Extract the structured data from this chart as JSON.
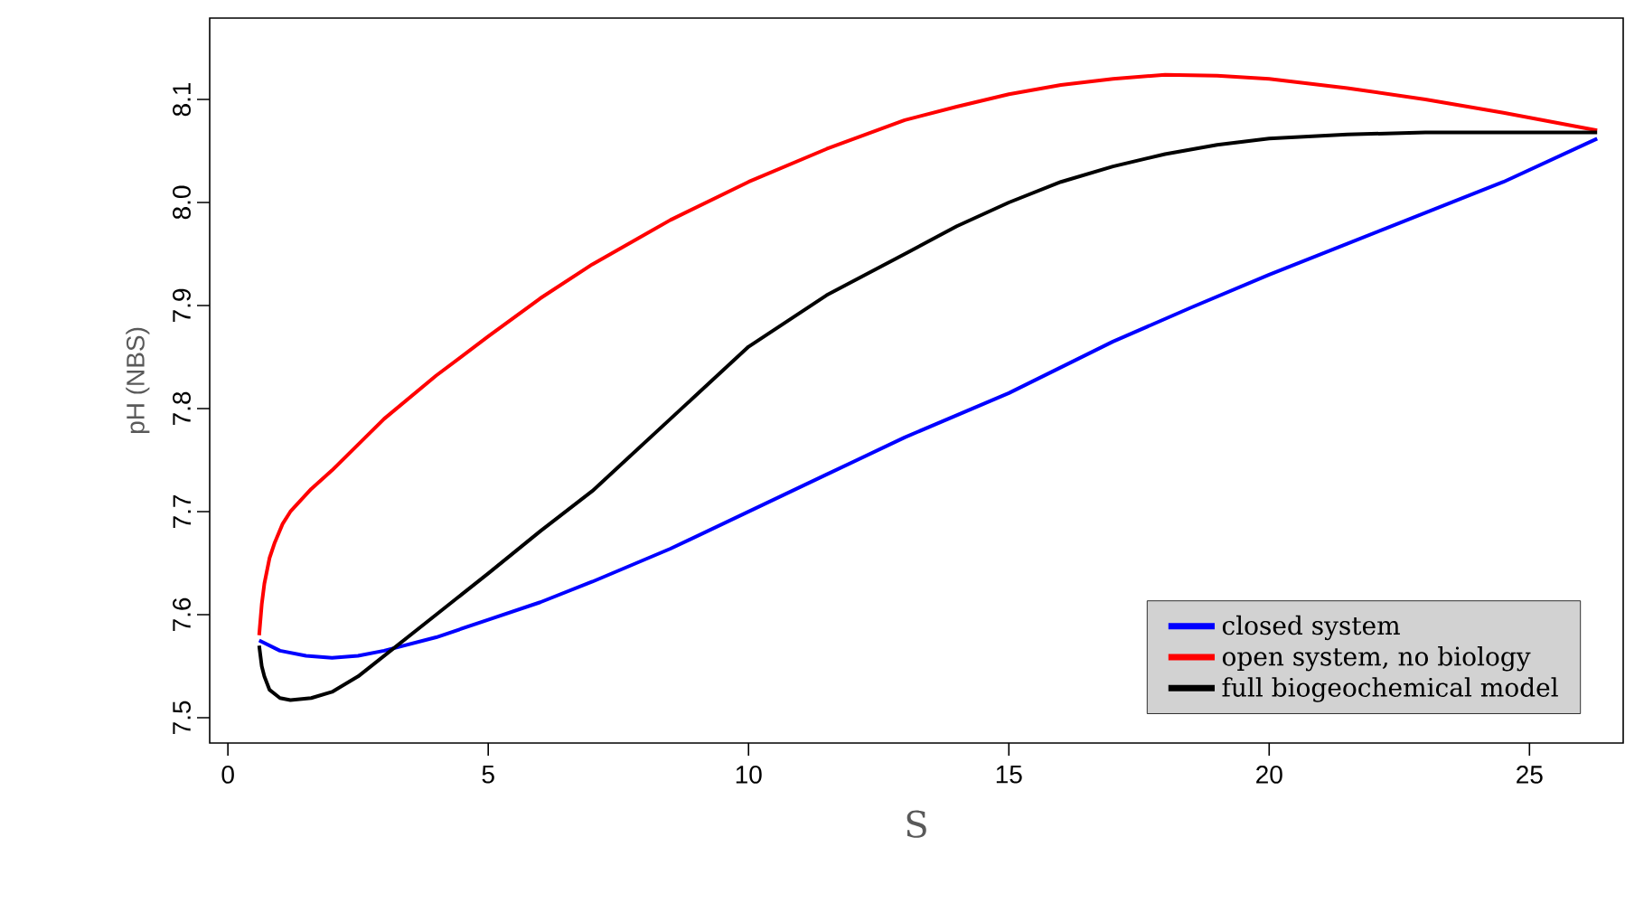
{
  "chart_data": {
    "type": "line",
    "xlabel": "S",
    "ylabel": "pH (NBS)",
    "xlim": [
      -0.35,
      26.8
    ],
    "ylim": [
      7.4754,
      8.179
    ],
    "xticks": [
      0,
      5,
      10,
      15,
      20,
      25
    ],
    "yticks": [
      7.5,
      7.6,
      7.7,
      7.8,
      7.9,
      {
        "value": 8.0,
        "label": "8.0"
      },
      8.1
    ],
    "legend": "bottom right",
    "grid": false,
    "marker": "none",
    "line_style": "solid",
    "series": [
      {
        "name": "closed system",
        "color": "#0000ff",
        "x": [
          0.6,
          1,
          1.5,
          2,
          2.5,
          3,
          4,
          5,
          6,
          7,
          8.5,
          10,
          11.5,
          13,
          15,
          17,
          18.5,
          20,
          21.5,
          23,
          24.5,
          26.3
        ],
        "values": [
          7.575,
          7.565,
          7.56,
          7.558,
          7.56,
          7.565,
          7.578,
          7.595,
          7.612,
          7.632,
          7.664,
          7.7,
          7.736,
          7.772,
          7.815,
          7.865,
          7.898,
          7.93,
          7.96,
          7.99,
          8.02,
          8.062
        ]
      },
      {
        "name": "open system, no biology",
        "color": "#ff0000",
        "x": [
          0.6,
          0.65,
          0.7,
          0.8,
          0.9,
          1.05,
          1.2,
          1.6,
          2,
          2.5,
          3,
          4,
          5,
          6,
          7,
          8.5,
          10,
          11.5,
          13,
          14,
          15,
          16,
          17,
          18,
          19,
          20,
          21.5,
          23,
          24.5,
          26.3
        ],
        "values": [
          7.58,
          7.61,
          7.63,
          7.655,
          7.67,
          7.688,
          7.7,
          7.722,
          7.74,
          7.765,
          7.79,
          7.832,
          7.87,
          7.907,
          7.94,
          7.983,
          8.02,
          8.052,
          8.08,
          8.093,
          8.105,
          8.114,
          8.12,
          8.124,
          8.123,
          8.12,
          8.111,
          8.1,
          8.087,
          8.07
        ]
      },
      {
        "name": "full biogeochemical model",
        "color": "#000000",
        "x": [
          0.6,
          0.65,
          0.7,
          0.8,
          1,
          1.2,
          1.6,
          2,
          2.5,
          3,
          4,
          5,
          6,
          7,
          8.5,
          10,
          11.5,
          13,
          14,
          15,
          16,
          17,
          18,
          19,
          20,
          21.5,
          23,
          24.5,
          26.3
        ],
        "values": [
          7.57,
          7.55,
          7.54,
          7.527,
          7.519,
          7.517,
          7.519,
          7.525,
          7.54,
          7.56,
          7.6,
          7.64,
          7.681,
          7.72,
          7.79,
          7.86,
          7.91,
          7.95,
          7.977,
          8.0,
          8.02,
          8.035,
          8.047,
          8.056,
          8.062,
          8.066,
          8.068,
          8.068,
          8.068
        ]
      }
    ]
  }
}
